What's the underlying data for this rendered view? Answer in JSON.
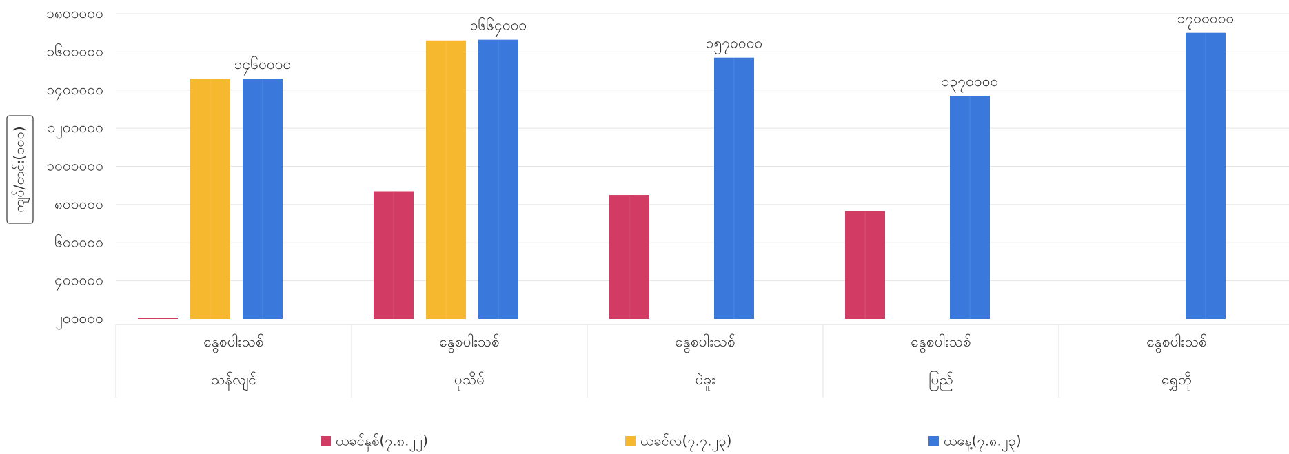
{
  "chart_data": {
    "type": "bar",
    "ylabel": "ကျပ်/တင်း(၁၀၀)",
    "xlabel": "",
    "y_tick_labels": [
      "၂၀၀၀၀၀",
      "၄၀၀၀၀၀",
      "၆၀၀၀၀၀",
      "၈၀၀၀၀၀",
      "၁၀၀၀၀၀၀",
      "၁၂၀၀၀၀၀",
      "၁၄၀၀၀၀၀",
      "၁၆၀၀၀၀၀",
      "၁၈၀၀၀၀၀"
    ],
    "y_ticks": [
      200000,
      400000,
      600000,
      800000,
      1000000,
      1200000,
      1400000,
      1600000,
      1800000
    ],
    "ylim": [
      200000,
      1800000
    ],
    "grid": true,
    "legend_position": "bottom",
    "categories": [
      {
        "top": "နွေစပါးသစ်",
        "bottom": "သန်လျင်"
      },
      {
        "top": "နွေစပါးသစ်",
        "bottom": "ပုသိမ်"
      },
      {
        "top": "နွေစပါးသစ်",
        "bottom": "ပဲခူး"
      },
      {
        "top": "နွေစပါးသစ်",
        "bottom": "ပြည်"
      },
      {
        "top": "နွေစပါးသစ်",
        "bottom": "ရွှေဘို"
      }
    ],
    "series": [
      {
        "name": "ယခင်နှစ်(၇.၈.၂၂)",
        "color": "#d23c64",
        "values": [
          200000,
          870000,
          850000,
          765000,
          null
        ]
      },
      {
        "name": "ယခင်လ(၇.၇.၂၃)",
        "color": "#f5b82e",
        "values": [
          1460000,
          1660000,
          null,
          null,
          null
        ]
      },
      {
        "name": "ယနေ့(၇.၈.၂၃)",
        "color": "#3b78dc",
        "values": [
          1460000,
          1664000,
          1570000,
          1370000,
          1700000
        ]
      }
    ],
    "data_labels": [
      {
        "category_index": 0,
        "series_index": 2,
        "text": "၁၄၆၀၀၀၀"
      },
      {
        "category_index": 1,
        "series_index": 2,
        "text": "၁၆၆၄၀၀၀"
      },
      {
        "category_index": 2,
        "series_index": 2,
        "text": "၁၅၇၀၀၀၀"
      },
      {
        "category_index": 3,
        "series_index": 2,
        "text": "၁၃၇၀၀၀၀"
      },
      {
        "category_index": 4,
        "series_index": 2,
        "text": "၁၇၀၀၀၀၀"
      }
    ]
  }
}
